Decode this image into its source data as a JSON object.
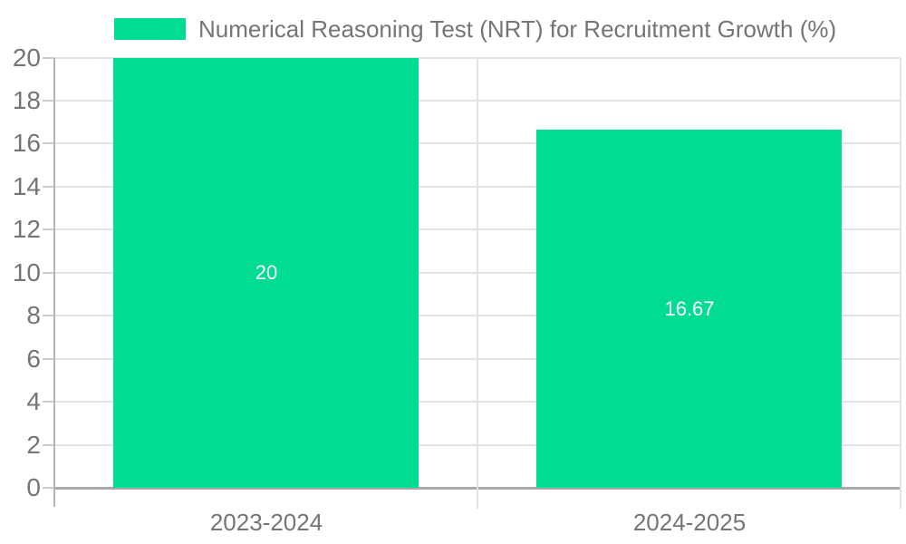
{
  "legend": {
    "label": "Numerical Reasoning Test (NRT) for Recruitment Growth (%)"
  },
  "colors": {
    "bar": "#00DD93",
    "text": "#757575",
    "gridline": "#e3e3e3",
    "axis_line": "#b3b3b3",
    "baseline": "#a9a9a9",
    "tick": "#cccccc",
    "value_label": "#ffffff"
  },
  "chart_data": {
    "type": "bar",
    "title": "",
    "xlabel": "",
    "ylabel": "",
    "categories": [
      "2023-2024",
      "2024-2025"
    ],
    "series": [
      {
        "name": "Numerical Reasoning Test (NRT) for Recruitment Growth (%)",
        "values": [
          20,
          16.67
        ],
        "value_labels": [
          "20",
          "16.67"
        ]
      }
    ],
    "ylim": [
      0,
      20
    ],
    "yticks": [
      0,
      2,
      4,
      6,
      8,
      10,
      12,
      14,
      16,
      18,
      20
    ],
    "grid": true,
    "legend_position": "top-left",
    "value_labels_inside": true
  }
}
